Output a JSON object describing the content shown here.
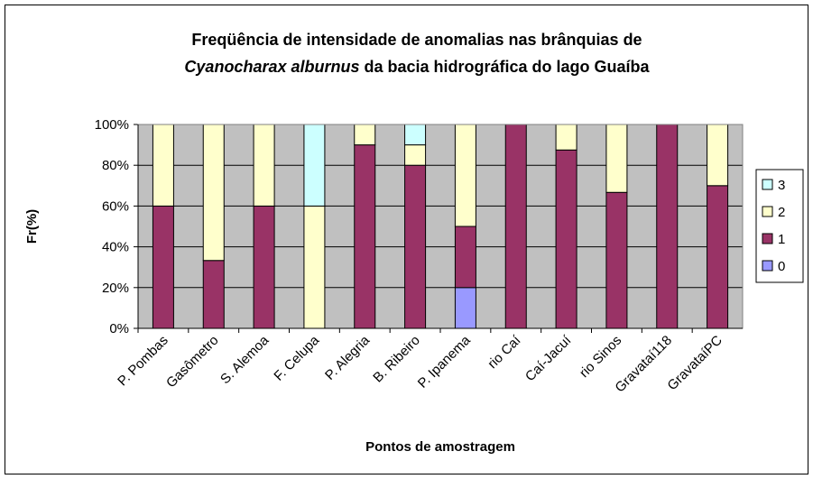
{
  "chart_data": {
    "type": "stacked_bar",
    "title": [
      "Freqüência de intensidade de anomalias nas brânquias de",
      "Cyanocharax alburnus",
      "da bacia hidrográfica do lago Guaíba"
    ],
    "x_label": "Pontos de amostragem",
    "y_label": "Fr(%)",
    "categories": [
      "P. Pombas",
      "Gasômetro",
      "S. Alemoa",
      "F. Celupa",
      "P. Alegria",
      "B. Ribeiro",
      "P. Ipanema",
      "rio Caí",
      "Caí-Jacuí",
      "rio Sinos",
      "Gravataí118",
      "GravataíPC"
    ],
    "series": [
      {
        "name": "0",
        "color": "#9999ff",
        "values": [
          0,
          0,
          0,
          0,
          0,
          0,
          20,
          0,
          0,
          0,
          0,
          0
        ]
      },
      {
        "name": "1",
        "color": "#993366",
        "values": [
          60,
          33.3,
          60,
          0,
          90,
          80,
          30,
          100,
          87.5,
          66.7,
          100,
          70
        ]
      },
      {
        "name": "2",
        "color": "#ffffcc",
        "values": [
          40,
          66.7,
          40,
          60,
          10,
          10,
          50,
          0,
          12.5,
          33.3,
          0,
          30
        ]
      },
      {
        "name": "3",
        "color": "#ccffff",
        "values": [
          0,
          0,
          0,
          40,
          0,
          10,
          0,
          0,
          0,
          0,
          0,
          0
        ]
      }
    ],
    "ylim": [
      0,
      100
    ],
    "yticks": [
      {
        "value": 0,
        "label": "0%"
      },
      {
        "value": 20,
        "label": "20%"
      },
      {
        "value": 40,
        "label": "40%"
      },
      {
        "value": 60,
        "label": "60%"
      },
      {
        "value": 80,
        "label": "80%"
      },
      {
        "value": 100,
        "label": "100%"
      }
    ],
    "grid": true,
    "legend": "right",
    "plot_background": "#c0c0c0"
  }
}
